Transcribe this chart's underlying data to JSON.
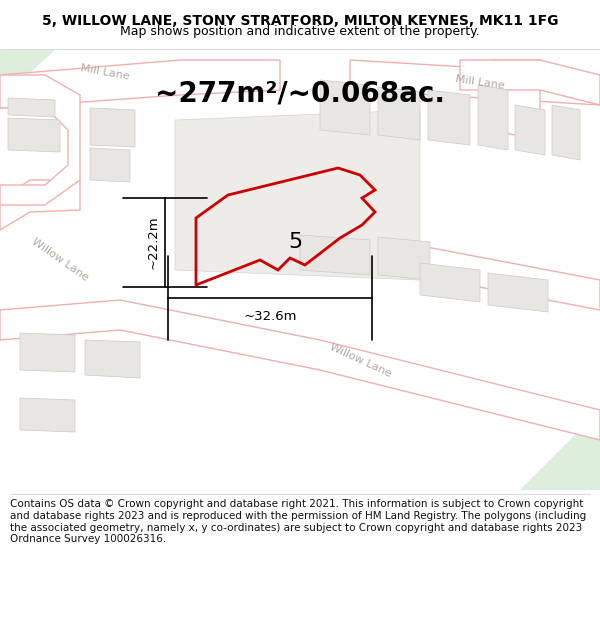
{
  "title": "5, WILLOW LANE, STONY STRATFORD, MILTON KEYNES, MK11 1FG",
  "subtitle": "Map shows position and indicative extent of the property.",
  "area_text": "~277m²/~0.068ac.",
  "dim_width": "~32.6m",
  "dim_height": "~22.2m",
  "property_label": "5",
  "copyright_text": "Contains OS data © Crown copyright and database right 2021. This information is subject to Crown copyright and database rights 2023 and is reproduced with the permission of HM Land Registry. The polygons (including the associated geometry, namely x, y co-ordinates) are subject to Crown copyright and database rights 2023 Ordnance Survey 100026316.",
  "map_bg": "#f5f3f0",
  "road_fill": "#ffffff",
  "road_edge": "#f0b0b0",
  "bld_fill": "#e8e6e2",
  "bld_edge": "#d0c8c0",
  "green_fill": "#ddeedd",
  "prop_edge": "#cc0000",
  "road_label_color": "#b0a8a0",
  "title_fontsize": 10,
  "subtitle_fontsize": 9,
  "area_fontsize": 20,
  "prop_label_fontsize": 16,
  "dim_fontsize": 9.5,
  "copyright_fontsize": 7.5
}
